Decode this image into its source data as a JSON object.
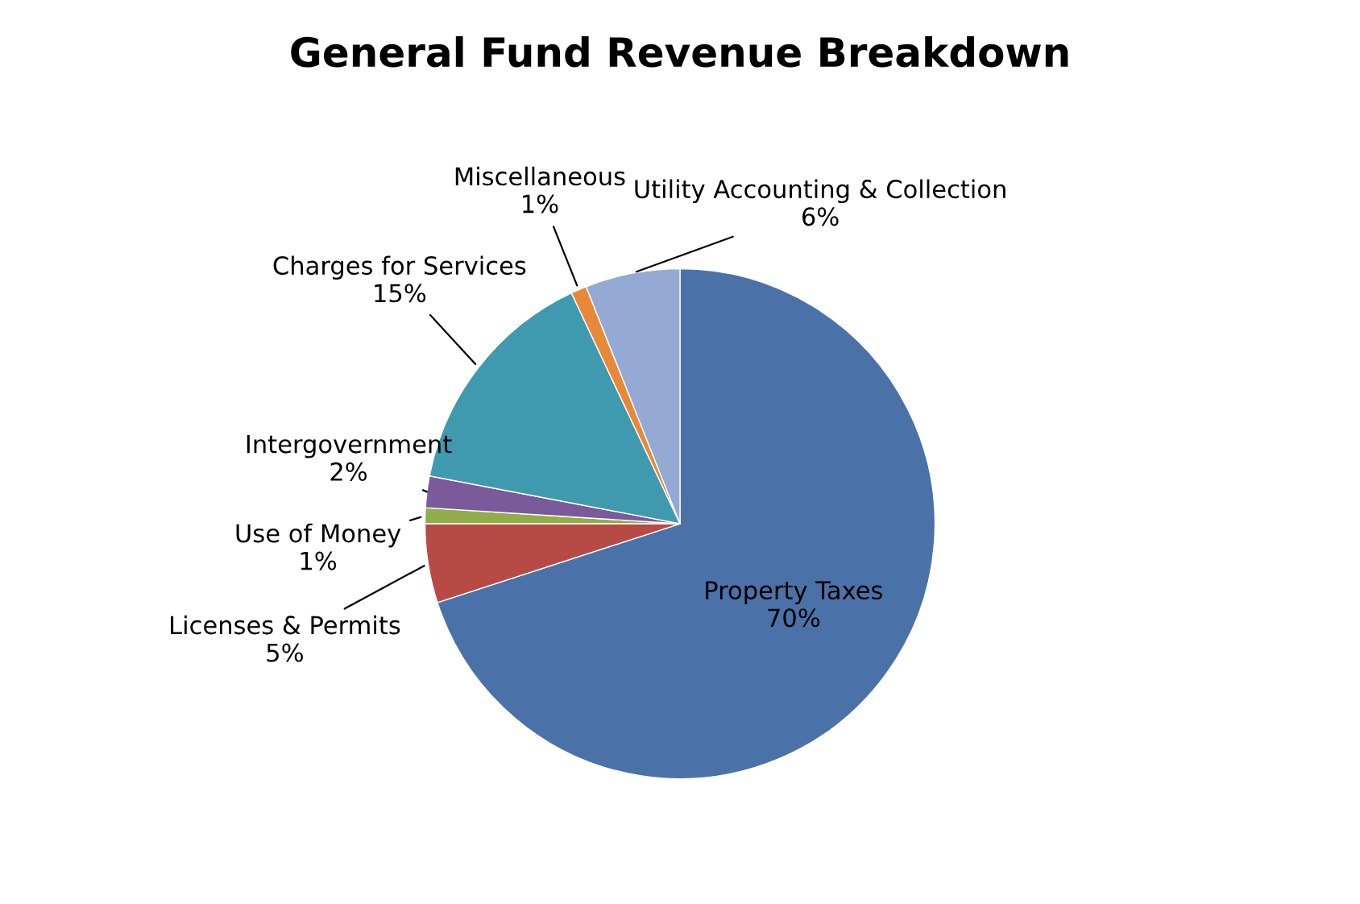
{
  "chart_data": {
    "type": "pie",
    "title": "General Fund Revenue Breakdown",
    "categories": [
      "Property Taxes",
      "Licenses & Permits",
      "Use of Money",
      "Intergovernment",
      "Charges for Services",
      "Miscellaneous",
      "Utility Accounting & Collection"
    ],
    "values": [
      70,
      5,
      1,
      2,
      15,
      1,
      6
    ],
    "value_labels": [
      "70%",
      "5%",
      "1%",
      "2%",
      "15%",
      "1%",
      "6%"
    ],
    "colors": [
      "#4a72a8",
      "#b84a45",
      "#8fae4a",
      "#7a5a9a",
      "#3f9ab0",
      "#e8893a",
      "#94aad4"
    ],
    "legend": false
  }
}
